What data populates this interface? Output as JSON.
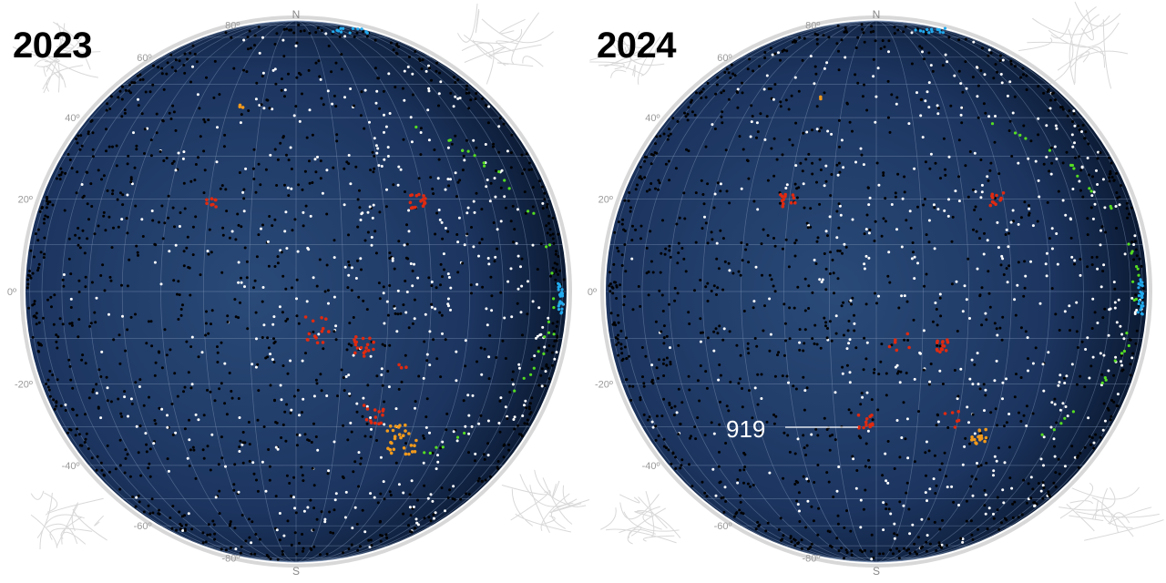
{
  "panels": [
    {
      "year": "2023",
      "lat_labels": [
        "80º",
        "60º",
        "40º",
        "20º",
        "0º",
        "-20º",
        "-40º",
        "-60º",
        "-80º"
      ],
      "north_label": "N",
      "south_label": "S",
      "callout": null
    },
    {
      "year": "2024",
      "lat_labels": [
        "80º",
        "60º",
        "40º",
        "20º",
        "0º",
        "-20º",
        "-40º",
        "-60º",
        "-80º"
      ],
      "north_label": "N",
      "south_label": "S",
      "callout": "919"
    }
  ],
  "colors": {
    "sphere_center": "#2a4a78",
    "sphere_edge": "#0b1a33",
    "white_dots": "#ffffff",
    "black_dots": "#000000",
    "red_clusters": "#e02a10",
    "orange_clusters": "#f29a1c",
    "green_dots": "#55dd22",
    "cyan_dots": "#22aaee",
    "grid": "#8aa0c0",
    "rim": "#d8d8d8"
  }
}
